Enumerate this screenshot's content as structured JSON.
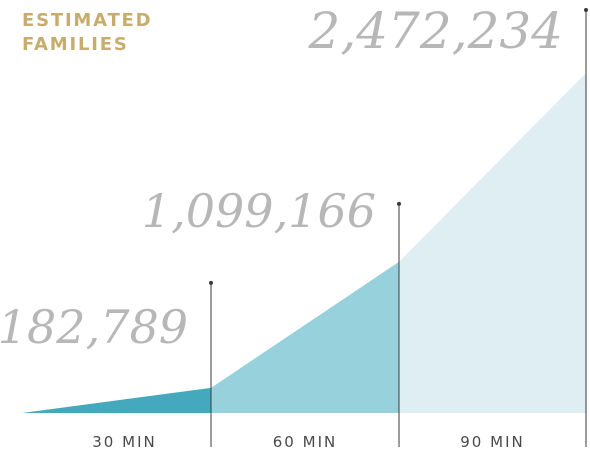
{
  "chart_data": {
    "type": "area",
    "ylabel": "ESTIMATED FAMILIES",
    "categories": [
      "30 MIN",
      "60 MIN",
      "90 MIN"
    ],
    "values": [
      182789,
      1099166,
      2472234
    ],
    "value_labels": [
      "182,789",
      "1,099,166",
      "2,472,234"
    ],
    "start_value": 0,
    "colors": [
      "#44a9bd",
      "#97d1dc",
      "#dfeef3"
    ],
    "grid": false,
    "legend": "none"
  }
}
